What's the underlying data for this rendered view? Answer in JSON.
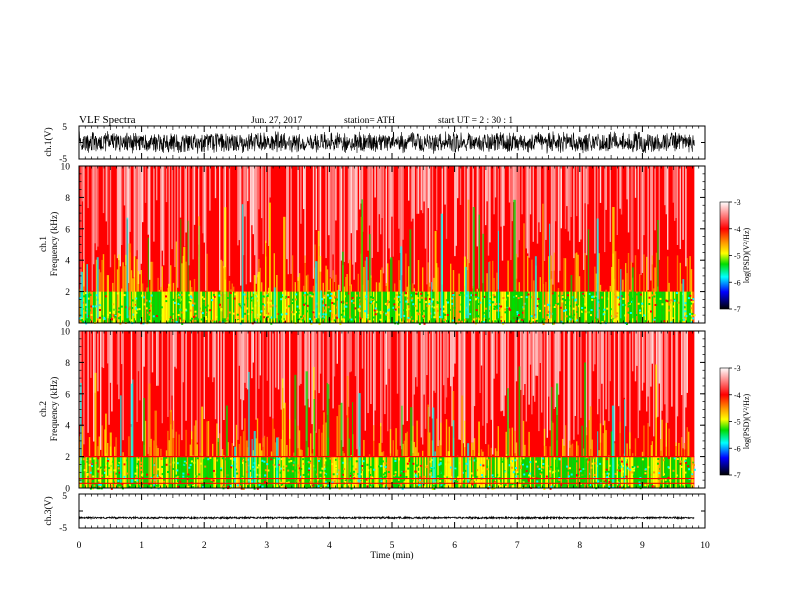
{
  "header": {
    "title": "VLF  Spectra",
    "date": "Jun. 27, 2017",
    "station": "station= ATH",
    "start_ut": "start  UT  =    2  : 30 : 1"
  },
  "chart_data": [
    {
      "type": "line",
      "name": "ch1-waveform",
      "ylabel": "ch.1(V)",
      "ylim": [
        -5,
        5
      ],
      "ytick_labels": [
        "5",
        "-5"
      ],
      "x_extent_min": [
        0,
        9.83
      ],
      "amplitude_range_v": [
        -3.5,
        3.5
      ]
    },
    {
      "type": "heatmap",
      "name": "ch1-spectrogram",
      "ylabel_line1": "ch.1",
      "ylabel_line2": "Frequency (kHz)",
      "ylim": [
        0,
        10
      ],
      "ytick_labels": [
        "0",
        "2",
        "4",
        "6",
        "8",
        "10"
      ],
      "x_extent_min": [
        0,
        9.83
      ],
      "colorbar": {
        "label": "log(PSD)(V²/Hz)",
        "range": [
          -7,
          -3
        ],
        "tick_labels": [
          "-3",
          "-4",
          "-5",
          "-6",
          "-7"
        ]
      },
      "dominant_level": -4,
      "low_band_khz": [
        0,
        2
      ],
      "low_band_level": -4.8
    },
    {
      "type": "heatmap",
      "name": "ch2-spectrogram",
      "ylabel_line1": "ch.2",
      "ylabel_line2": "Frequency (kHz)",
      "ylim": [
        0,
        10
      ],
      "ytick_labels": [
        "0",
        "2",
        "4",
        "6",
        "8",
        "10"
      ],
      "x_extent_min": [
        0,
        9.83
      ],
      "colorbar": {
        "label": "log(PSD)(V²/Hz)",
        "range": [
          -7,
          -3
        ],
        "tick_labels": [
          "-3",
          "-4",
          "-5",
          "-6",
          "-7"
        ]
      },
      "dominant_level": -4,
      "low_band_khz": [
        0,
        2
      ],
      "low_band_level": -4.8,
      "line_frequencies_khz": [
        2.0,
        0.6,
        0.3
      ]
    },
    {
      "type": "line",
      "name": "ch3-waveform",
      "ylabel": "ch.3(V)",
      "ylim": [
        -5,
        5
      ],
      "ytick_labels": [
        "5",
        "-5"
      ],
      "x_extent_min": [
        0,
        9.83
      ],
      "baseline_v": -2,
      "amplitude_range_v": [
        -2.3,
        -1.7
      ]
    }
  ],
  "x_axis": {
    "xlabel": "Time  (min)",
    "xlim": [
      0,
      10
    ],
    "tick_labels": [
      "0",
      "1",
      "2",
      "3",
      "4",
      "5",
      "6",
      "7",
      "8",
      "9",
      "10"
    ]
  },
  "colors": {
    "grey": "#dcdcdc",
    "white": "#ffffff",
    "red": "#ff0000",
    "orange": "#ff9900",
    "yellow": "#ffff00",
    "green": "#00dd00",
    "cyan": "#00ffff",
    "blue": "#0000ff",
    "navy": "#000060",
    "black": "#000000"
  }
}
